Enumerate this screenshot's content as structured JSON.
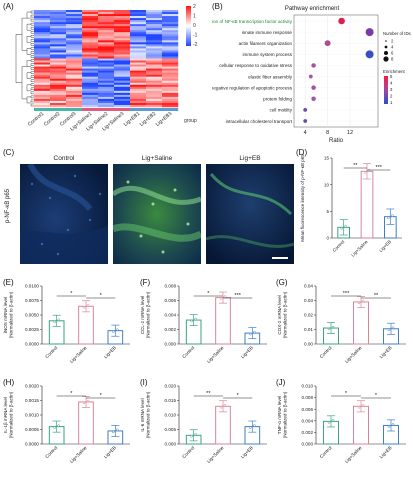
{
  "panels": [
    "(A)",
    "(B)",
    "(C)",
    "(D)",
    "(E)",
    "(F)",
    "(G)",
    "(H)",
    "(I)",
    "(J)"
  ],
  "heatmap": {
    "legend_ticks": [
      "2",
      "1",
      "0",
      "-1",
      "-2"
    ],
    "group_label": "group",
    "group_colors": [
      "#45b7a9",
      "#e05a7b",
      "#5a9bd4"
    ],
    "samples": [
      "Control1",
      "Control2",
      "Control3",
      "Lig+Saline1",
      "Lig+Saline2",
      "Lig+Saline3",
      "Lig+EB1",
      "Lig+EB2",
      "Lig+EB3"
    ]
  },
  "chart_data": [
    {
      "type": "scatter",
      "title": "Pathway enrichment",
      "xlabel": "Ratio",
      "xlim": [
        2,
        17
      ],
      "xticks": [
        4,
        8,
        12
      ],
      "categories": [
        "positive regulation of NF-κB transcription factor activity",
        "innate immune response",
        "actin filament organization",
        "immune system process",
        "cellular response to oxidative stress",
        "elastic fiber assembly",
        "negative regulation of apoptotic process",
        "protein folding",
        "cell motility",
        "intracellular cholesterol transport"
      ],
      "x": [
        10.5,
        15.5,
        8,
        15.5,
        5.5,
        5,
        5.5,
        5.5,
        4,
        4
      ],
      "count": [
        6,
        8,
        5,
        8,
        3,
        2,
        3,
        3,
        2,
        2
      ],
      "size_legend": {
        "title": "Number of IDs",
        "values": [
          "2",
          "4",
          "6",
          "8"
        ]
      },
      "color_legend": {
        "title": "Enrichment",
        "ticks": [
          "5",
          "4",
          "3",
          "2",
          "1"
        ]
      },
      "highlight_color": "#1a8a3a"
    },
    {
      "type": "bar",
      "ylabel": "Mean fluorescence intensity of p-NF-κB p65",
      "categories": [
        "Control",
        "Lig+Saline",
        "Lig+EB"
      ],
      "values": [
        2,
        12.5,
        4
      ],
      "ylim": [
        0,
        15
      ],
      "yticks": [
        "0",
        "5",
        "10",
        "15"
      ],
      "sig": [
        "**",
        "***"
      ]
    },
    {
      "type": "bar",
      "ylabel": "iNOS mRNA level (Normalized to β-actin)",
      "categories": [
        "Control",
        "Lig+Saline",
        "Lig+EB"
      ],
      "values": [
        0.004,
        0.0065,
        0.0023
      ],
      "ylim": [
        0,
        0.01
      ],
      "yticks": [
        "0.0000",
        "0.0025",
        "0.0050",
        "0.0075",
        "0.0100"
      ],
      "sig": [
        "*",
        "*"
      ]
    },
    {
      "type": "bar",
      "ylabel": "CCL-2 mRNA level (Normalized to β-actin)",
      "categories": [
        "Control",
        "Lig+Saline",
        "Lig+EB"
      ],
      "values": [
        0.0033,
        0.0064,
        0.0015
      ],
      "ylim": [
        0,
        0.008
      ],
      "yticks": [
        "0.000",
        "0.002",
        "0.004",
        "0.006",
        "0.008"
      ],
      "sig": [
        "*",
        "***"
      ]
    },
    {
      "type": "bar",
      "ylabel": "COX-2 mRNA level (Normalized to β-actin)",
      "categories": [
        "Control",
        "Lig+Saline",
        "Lig+EB"
      ],
      "values": [
        0.011,
        0.029,
        0.0105
      ],
      "ylim": [
        0,
        0.04
      ],
      "yticks": [
        "0.00",
        "0.01",
        "0.02",
        "0.03",
        "0.04"
      ],
      "sig": [
        "***",
        "**"
      ]
    },
    {
      "type": "bar",
      "ylabel": "IL-1β mRNA level (Normalized to β-actin)",
      "categories": [
        "Control",
        "Lig+Saline",
        "Lig+EB"
      ],
      "values": [
        0.0006,
        0.00145,
        0.00045
      ],
      "ylim": [
        0,
        0.002
      ],
      "yticks": [
        "0.0000",
        "0.0005",
        "0.0010",
        "0.0015",
        "0.0020"
      ],
      "sig": [
        "*",
        "*"
      ]
    },
    {
      "type": "bar",
      "ylabel": "IL-6 mRNA level (Normalized to β-actin)",
      "categories": [
        "Control",
        "Lig+Saline",
        "Lig+EB"
      ],
      "values": [
        0.003,
        0.013,
        0.006
      ],
      "ylim": [
        0,
        0.02
      ],
      "yticks": [
        "0.000",
        "0.005",
        "0.010",
        "0.015",
        "0.020"
      ],
      "sig": [
        "**",
        "*"
      ]
    },
    {
      "type": "bar",
      "ylabel": "TNF-α mRNA level (Normalized to β-actin)",
      "categories": [
        "Control",
        "Lig+Saline",
        "Lig+EB"
      ],
      "values": [
        0.0039,
        0.0065,
        0.0032
      ],
      "ylim": [
        0,
        0.01
      ],
      "yticks": [
        "0.000",
        "0.002",
        "0.004",
        "0.006",
        "0.008",
        "0.010"
      ],
      "sig": [
        "*",
        "*"
      ]
    }
  ],
  "micrographs": {
    "row_label": "p-NF-κB p65",
    "titles": [
      "Control",
      "Lig+Saline",
      "Lig+EB"
    ]
  },
  "bar_colors": [
    "#3aa383",
    "#d7869a",
    "#3f7fc4"
  ]
}
